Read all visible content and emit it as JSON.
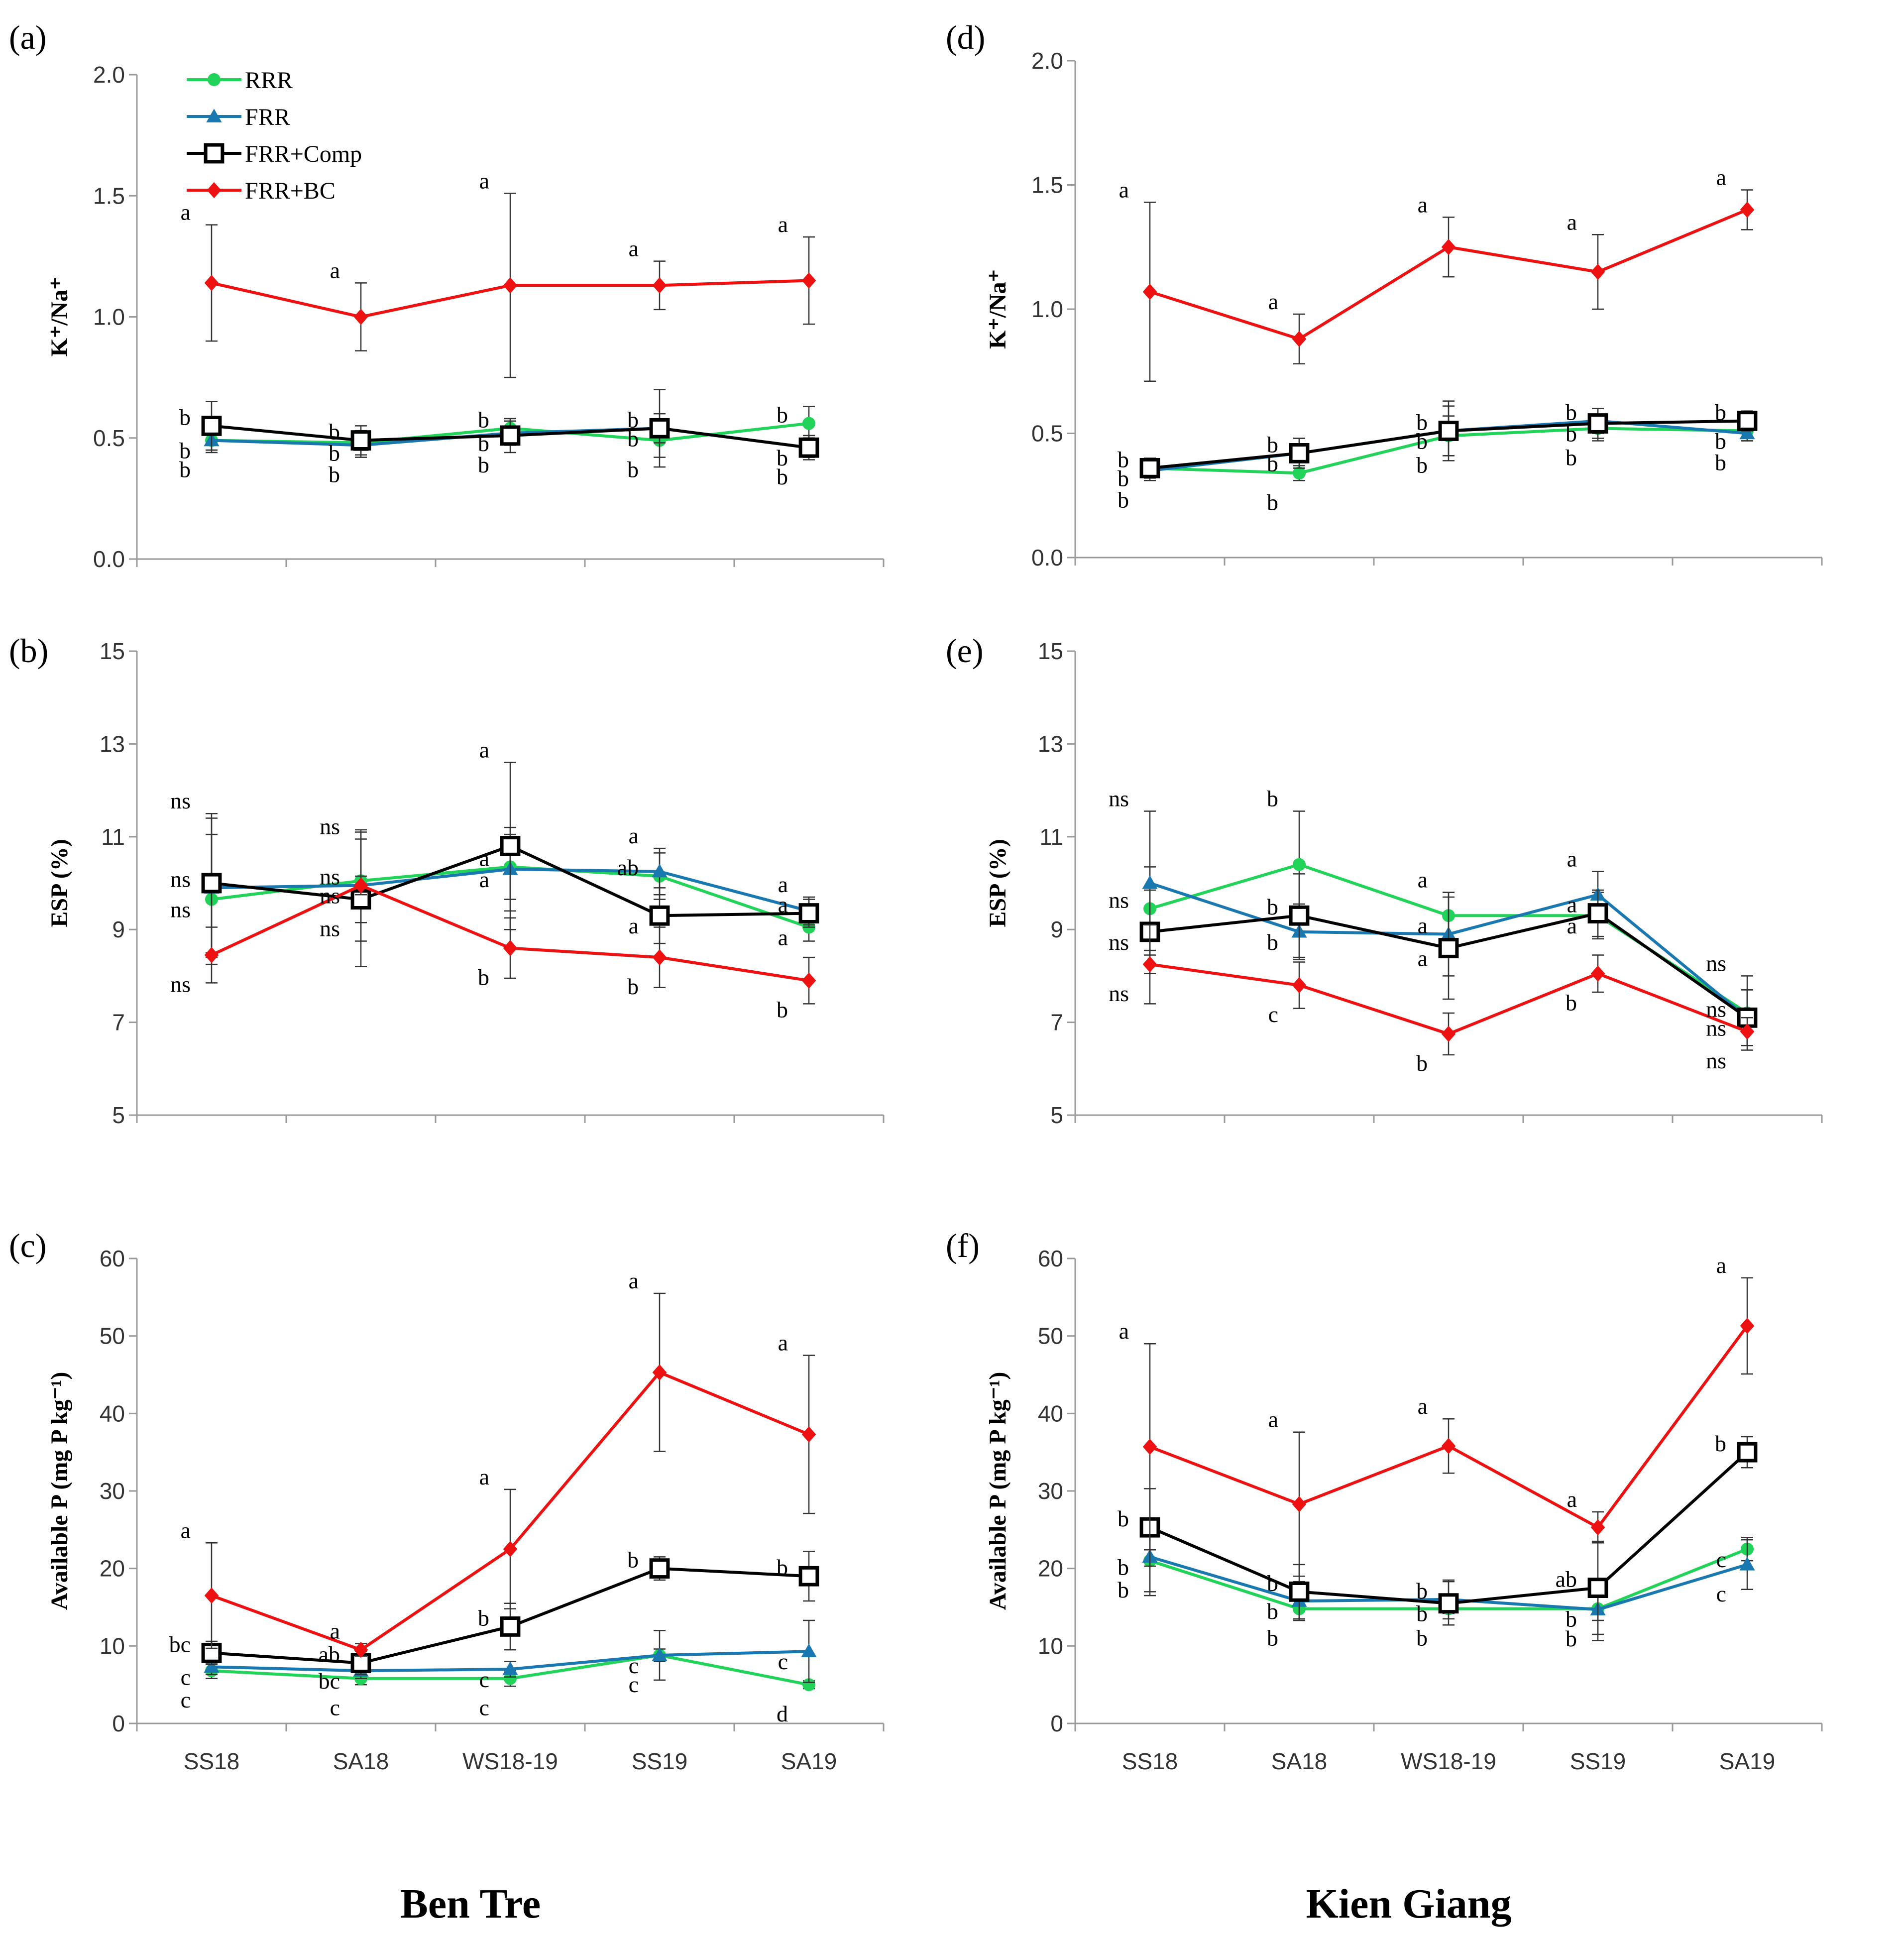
{
  "figure": {
    "sites": [
      "Ben Tre",
      "Kien Giang"
    ],
    "legend": [
      {
        "name": "RRR",
        "color": "#22d35a",
        "marker": "circle"
      },
      {
        "name": "FRR",
        "color": "#1a78b0",
        "marker": "triangle"
      },
      {
        "name": "FRR+Comp",
        "color": "#000000",
        "marker": "square"
      },
      {
        "name": "FRR+BC",
        "color": "#ee1111",
        "marker": "diamond"
      }
    ]
  },
  "chart_data": [
    {
      "panel": "(a)",
      "site": "Ben Tre",
      "type": "line",
      "ylabel": "K⁺/Na⁺",
      "ylim": [
        0,
        2
      ],
      "yticks": [
        "0.0",
        "0.5",
        "1.0",
        "1.5",
        "2.0"
      ],
      "categories": [
        "SS18",
        "SA18",
        "WS18-19",
        "SS19",
        "SA19"
      ],
      "show_xticks": false,
      "series": [
        {
          "name": "RRR",
          "values": [
            0.49,
            0.48,
            0.54,
            0.49,
            0.56
          ],
          "err": [
            0.04,
            0.05,
            0.04,
            0.07,
            0.07
          ],
          "sig": [
            "b",
            "b",
            "b",
            "b",
            "b"
          ]
        },
        {
          "name": "FRR",
          "values": [
            0.49,
            0.47,
            0.52,
            0.54,
            0.46
          ],
          "err": [
            0.05,
            0.05,
            0.05,
            0.06,
            0.04
          ],
          "sig": [
            "b",
            "b",
            "b",
            "b",
            "b"
          ]
        },
        {
          "name": "FRR+Comp",
          "values": [
            0.55,
            0.49,
            0.51,
            0.54,
            0.46
          ],
          "err": [
            0.1,
            0.06,
            0.07,
            0.16,
            0.05
          ],
          "sig": [
            "b",
            "b",
            "b",
            "b",
            "b"
          ]
        },
        {
          "name": "FRR+BC",
          "values": [
            1.14,
            1.0,
            1.13,
            1.13,
            1.15
          ],
          "err": [
            0.24,
            0.14,
            0.38,
            0.1,
            0.18
          ],
          "sig": [
            "a",
            "a",
            "a",
            "a",
            "a"
          ]
        }
      ]
    },
    {
      "panel": "(b)",
      "site": "Ben Tre",
      "type": "line",
      "ylabel": "ESP (%)",
      "ylim": [
        5,
        15
      ],
      "yticks": [
        "5",
        "7",
        "9",
        "11",
        "13",
        "15"
      ],
      "categories": [
        "SS18",
        "SA18",
        "WS18-19",
        "SS19",
        "SA19"
      ],
      "show_xticks": false,
      "series": [
        {
          "name": "RRR",
          "values": [
            9.65,
            10.05,
            10.35,
            10.15,
            9.05
          ],
          "err": [
            1.4,
            0.9,
            0.7,
            0.5,
            0.3
          ],
          "sig": [
            "ns",
            "ns",
            "a",
            "ab",
            "a"
          ]
        },
        {
          "name": "FRR",
          "values": [
            9.9,
            9.95,
            10.3,
            10.25,
            9.4
          ],
          "err": [
            1.5,
            1.2,
            0.9,
            0.5,
            0.3
          ],
          "sig": [
            "ns",
            "ns",
            "a",
            "a",
            "a"
          ]
        },
        {
          "name": "FRR+Comp",
          "values": [
            10.0,
            9.65,
            10.8,
            9.3,
            9.35
          ],
          "err": [
            1.5,
            1.45,
            1.8,
            0.6,
            0.3
          ],
          "sig": [
            "ns",
            "ns",
            "a",
            "a",
            "a"
          ]
        },
        {
          "name": "FRR+BC",
          "values": [
            8.45,
            9.95,
            8.6,
            8.4,
            7.9
          ],
          "err": [
            0.6,
            0.2,
            0.65,
            0.65,
            0.5
          ],
          "sig": [
            "ns",
            "ns",
            "b",
            "b",
            "b"
          ]
        }
      ]
    },
    {
      "panel": "(c)",
      "site": "Ben Tre",
      "type": "line",
      "ylabel": "Available P (mg P kg⁻¹)",
      "ylim": [
        0,
        60
      ],
      "yticks": [
        "0",
        "10",
        "20",
        "30",
        "40",
        "50",
        "60"
      ],
      "categories": [
        "SS18",
        "SA18",
        "WS18-19",
        "SS19",
        "SA19"
      ],
      "show_xticks": true,
      "series": [
        {
          "name": "RRR",
          "values": [
            6.8,
            5.8,
            5.8,
            8.8,
            5.0
          ],
          "err": [
            1.0,
            0.8,
            1.0,
            3.2,
            0.5
          ],
          "sig": [
            "c",
            "c",
            "c",
            "c",
            "d"
          ]
        },
        {
          "name": "FRR",
          "values": [
            7.3,
            6.8,
            7.0,
            8.8,
            9.3
          ],
          "err": [
            1.0,
            1.0,
            1.0,
            0.8,
            4.0
          ],
          "sig": [
            "c",
            "bc",
            "c",
            "c",
            "c"
          ]
        },
        {
          "name": "FRR+Comp",
          "values": [
            9.1,
            7.8,
            12.5,
            20.0,
            19.0
          ],
          "err": [
            1.5,
            1.5,
            3.0,
            1.5,
            3.2
          ],
          "sig": [
            "bc",
            "ab",
            "b",
            "b",
            "b"
          ]
        },
        {
          "name": "FRR+BC",
          "values": [
            16.5,
            9.5,
            22.5,
            45.3,
            37.3
          ],
          "err": [
            6.8,
            0.8,
            7.7,
            10.2,
            10.2
          ],
          "sig": [
            "a",
            "a",
            "a",
            "a",
            "a"
          ]
        }
      ]
    },
    {
      "panel": "(d)",
      "site": "Kien Giang",
      "type": "line",
      "ylabel": "K⁺/Na⁺",
      "ylim": [
        0,
        2
      ],
      "yticks": [
        "0.0",
        "0.5",
        "1.0",
        "1.5",
        "2.0"
      ],
      "categories": [
        "SS18",
        "SA18",
        "WS18-19",
        "SS19",
        "SA19"
      ],
      "show_xticks": false,
      "series": [
        {
          "name": "RRR",
          "values": [
            0.36,
            0.34,
            0.49,
            0.52,
            0.51
          ],
          "err": [
            0.03,
            0.03,
            0.08,
            0.05,
            0.04
          ],
          "sig": [
            "b",
            "b",
            "b",
            "b",
            "b"
          ]
        },
        {
          "name": "FRR",
          "values": [
            0.35,
            0.42,
            0.51,
            0.55,
            0.5
          ],
          "err": [
            0.04,
            0.06,
            0.1,
            0.05,
            0.03
          ],
          "sig": [
            "b",
            "b",
            "b",
            "b",
            "b"
          ]
        },
        {
          "name": "FRR+Comp",
          "values": [
            0.36,
            0.42,
            0.51,
            0.54,
            0.55
          ],
          "err": [
            0.04,
            0.06,
            0.12,
            0.06,
            0.04
          ],
          "sig": [
            "b",
            "b",
            "b",
            "b",
            "b"
          ]
        },
        {
          "name": "FRR+BC",
          "values": [
            1.07,
            0.88,
            1.25,
            1.15,
            1.4
          ],
          "err": [
            0.36,
            0.1,
            0.12,
            0.15,
            0.08
          ],
          "sig": [
            "a",
            "a",
            "a",
            "a",
            "a"
          ]
        }
      ]
    },
    {
      "panel": "(e)",
      "site": "Kien Giang",
      "type": "line",
      "ylabel": "ESP (%)",
      "ylim": [
        5,
        15
      ],
      "yticks": [
        "5",
        "7",
        "9",
        "11",
        "13",
        "15"
      ],
      "categories": [
        "SS18",
        "SA18",
        "WS18-19",
        "SS19",
        "SA19"
      ],
      "show_xticks": false,
      "series": [
        {
          "name": "RRR",
          "values": [
            9.45,
            10.4,
            9.3,
            9.3,
            7.2
          ],
          "err": [
            0.9,
            1.15,
            0.5,
            0.5,
            0.8
          ],
          "sig": [
            "ns",
            "b",
            "a",
            "a",
            "ns"
          ]
        },
        {
          "name": "FRR",
          "values": [
            10.0,
            8.95,
            8.9,
            9.75,
            7.1
          ],
          "err": [
            1.55,
            0.6,
            0.9,
            0.5,
            0.6
          ],
          "sig": [
            "ns",
            "b",
            "a",
            "a",
            "ns"
          ]
        },
        {
          "name": "FRR+Comp",
          "values": [
            8.95,
            9.3,
            8.6,
            9.35,
            7.1
          ],
          "err": [
            0.9,
            0.9,
            1.1,
            0.5,
            0.6
          ],
          "sig": [
            "ns",
            "b",
            "a",
            "a",
            "ns"
          ]
        },
        {
          "name": "FRR+BC",
          "values": [
            8.25,
            7.8,
            6.75,
            8.05,
            6.8
          ],
          "err": [
            0.85,
            0.5,
            0.45,
            0.4,
            0.3
          ],
          "sig": [
            "ns",
            "c",
            "b",
            "b",
            "ns"
          ]
        }
      ]
    },
    {
      "panel": "(f)",
      "site": "Kien Giang",
      "type": "line",
      "ylabel": "Available P (mg P kg⁻¹)",
      "ylim": [
        0,
        60
      ],
      "yticks": [
        "0",
        "10",
        "20",
        "30",
        "40",
        "50",
        "60"
      ],
      "categories": [
        "SS18",
        "SA18",
        "WS18-19",
        "SS19",
        "SA19"
      ],
      "show_xticks": true,
      "series": [
        {
          "name": "RRR",
          "values": [
            21.0,
            14.8,
            14.8,
            14.8,
            22.5
          ],
          "err": [
            4.0,
            1.5,
            0.6,
            1.5,
            1.5
          ],
          "sig": [
            "b",
            "b",
            "b",
            "b",
            "c"
          ]
        },
        {
          "name": "FRR",
          "values": [
            21.5,
            15.8,
            16.0,
            14.7,
            20.5
          ],
          "err": [
            5.0,
            2.5,
            2.5,
            4.0,
            3.2
          ],
          "sig": [
            "b",
            "b",
            "b",
            "b",
            "c"
          ]
        },
        {
          "name": "FRR+Comp",
          "values": [
            25.3,
            17.0,
            15.5,
            17.5,
            35.0
          ],
          "err": [
            5.0,
            3.5,
            2.8,
            6.0,
            2.0
          ],
          "sig": [
            "b",
            "b",
            "b",
            "ab",
            "b"
          ]
        },
        {
          "name": "FRR+BC",
          "values": [
            35.7,
            28.3,
            35.8,
            25.3,
            51.3
          ],
          "err": [
            13.3,
            9.3,
            3.5,
            2.0,
            6.2
          ],
          "sig": [
            "a",
            "a",
            "a",
            "a",
            "a"
          ]
        }
      ]
    }
  ]
}
